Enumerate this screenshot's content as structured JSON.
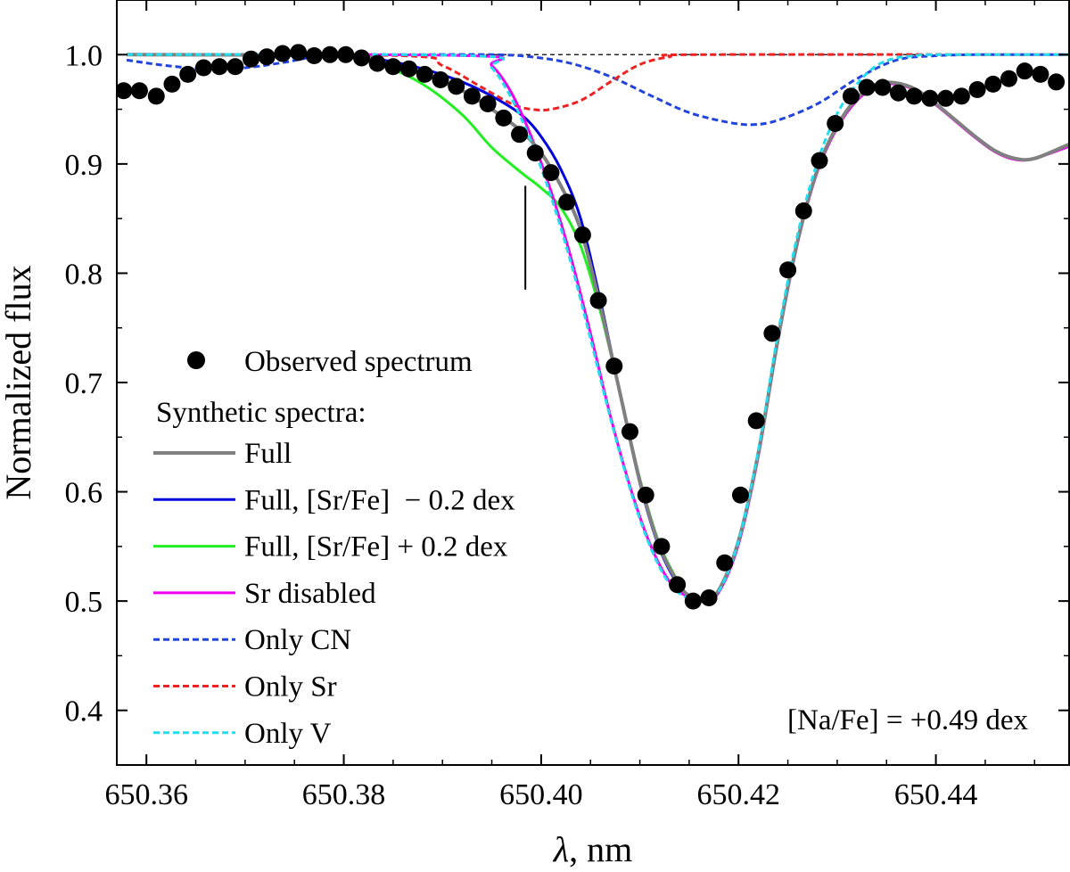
{
  "chart_data": {
    "type": "line",
    "title": "",
    "xlabel": "λ, nm",
    "xlabel_symbol": "λ",
    "xlabel_unit": ", nm",
    "ylabel": "Normalized flux",
    "xlim": [
      650.357,
      650.4535
    ],
    "ylim": [
      0.35,
      1.05
    ],
    "xticks": [
      650.36,
      650.38,
      650.4,
      650.42,
      650.44
    ],
    "xtick_labels": [
      "650.36",
      "650.38",
      "650.40",
      "650.42",
      "650.44"
    ],
    "yticks": [
      0.4,
      0.5,
      0.6,
      0.7,
      0.8,
      0.9,
      1.0
    ],
    "ytick_labels": [
      "0.4",
      "0.5",
      "0.6",
      "0.7",
      "0.8",
      "0.9",
      "1.0"
    ],
    "grid": false,
    "continuum_level": 1.0,
    "observed": {
      "name": "Observed spectrum",
      "color": "#000000",
      "points": [
        [
          650.3577,
          0.967
        ],
        [
          650.3593,
          0.967
        ],
        [
          650.361,
          0.962
        ],
        [
          650.3626,
          0.973
        ],
        [
          650.3642,
          0.982
        ],
        [
          650.3658,
          0.988
        ],
        [
          650.3674,
          0.989
        ],
        [
          650.369,
          0.989
        ],
        [
          650.3706,
          0.996
        ],
        [
          650.3722,
          0.998
        ],
        [
          650.3738,
          1.001
        ],
        [
          650.3754,
          1.002
        ],
        [
          650.377,
          0.999
        ],
        [
          650.3786,
          1.0
        ],
        [
          650.3802,
          1.0
        ],
        [
          650.3818,
          0.997
        ],
        [
          650.3834,
          0.992
        ],
        [
          650.385,
          0.989
        ],
        [
          650.3866,
          0.987
        ],
        [
          650.3882,
          0.982
        ],
        [
          650.3898,
          0.977
        ],
        [
          650.3914,
          0.971
        ],
        [
          650.393,
          0.962
        ],
        [
          650.3946,
          0.955
        ],
        [
          650.3962,
          0.942
        ],
        [
          650.3978,
          0.927
        ],
        [
          650.3994,
          0.91
        ],
        [
          650.401,
          0.892
        ],
        [
          650.4026,
          0.865
        ],
        [
          650.4042,
          0.835
        ],
        [
          650.4058,
          0.775
        ],
        [
          650.4074,
          0.715
        ],
        [
          650.409,
          0.655
        ],
        [
          650.4106,
          0.597
        ],
        [
          650.4122,
          0.55
        ],
        [
          650.4138,
          0.515
        ],
        [
          650.4154,
          0.5
        ],
        [
          650.417,
          0.503
        ],
        [
          650.4186,
          0.535
        ],
        [
          650.4202,
          0.597
        ],
        [
          650.4218,
          0.665
        ],
        [
          650.4234,
          0.745
        ],
        [
          650.425,
          0.803
        ],
        [
          650.4266,
          0.857
        ],
        [
          650.4282,
          0.903
        ],
        [
          650.4298,
          0.937
        ],
        [
          650.4314,
          0.962
        ],
        [
          650.433,
          0.97
        ],
        [
          650.4346,
          0.97
        ],
        [
          650.4362,
          0.965
        ],
        [
          650.4378,
          0.962
        ],
        [
          650.4394,
          0.96
        ],
        [
          650.441,
          0.96
        ],
        [
          650.4426,
          0.962
        ],
        [
          650.4442,
          0.968
        ],
        [
          650.4458,
          0.973
        ],
        [
          650.4474,
          0.978
        ],
        [
          650.449,
          0.985
        ],
        [
          650.4506,
          0.982
        ],
        [
          650.4522,
          0.975
        ]
      ]
    },
    "series": [
      {
        "name": "Full",
        "color": "#808080",
        "style": "solid",
        "width": 4,
        "x": [
          650.358,
          650.38,
          650.384,
          650.388,
          650.392,
          650.395,
          650.398,
          650.4,
          650.402,
          650.404,
          650.406,
          650.408,
          650.41,
          650.412,
          650.414,
          650.415,
          650.4165,
          650.418,
          650.42,
          650.422,
          650.424,
          650.426,
          650.428,
          650.43,
          650.432,
          650.434,
          650.436,
          650.438,
          650.44,
          650.442,
          650.444,
          650.446,
          650.448,
          650.45,
          650.4535
        ],
        "y": [
          1.0,
          0.999,
          0.993,
          0.982,
          0.967,
          0.95,
          0.93,
          0.91,
          0.88,
          0.84,
          0.77,
          0.69,
          0.61,
          0.55,
          0.515,
          0.505,
          0.5,
          0.51,
          0.555,
          0.635,
          0.74,
          0.83,
          0.895,
          0.935,
          0.96,
          0.973,
          0.974,
          0.968,
          0.955,
          0.94,
          0.925,
          0.912,
          0.905,
          0.905,
          0.918
        ]
      },
      {
        "name": "Full, [Sr/Fe]  − 0.2 dex",
        "color": "#0000dd",
        "style": "solid",
        "width": 3,
        "x": [
          650.358,
          650.38,
          650.384,
          650.388,
          650.392,
          650.395,
          650.398,
          650.4,
          650.402,
          650.404,
          650.406,
          650.408,
          650.41,
          650.412,
          650.414,
          650.415,
          650.4165,
          650.418,
          650.42,
          650.422,
          650.424,
          650.426,
          650.428,
          650.43,
          650.432,
          650.434
        ],
        "y": [
          1.0,
          0.999,
          0.995,
          0.987,
          0.975,
          0.962,
          0.945,
          0.925,
          0.895,
          0.85,
          0.775,
          0.69,
          0.608,
          0.548,
          0.513,
          0.504,
          0.5,
          0.51,
          0.555,
          0.635,
          0.74,
          0.83,
          0.895,
          0.935,
          0.96,
          0.973
        ]
      },
      {
        "name": "Full, [Sr/Fe] + 0.2 dex",
        "color": "#22ee22",
        "style": "solid",
        "width": 3,
        "x": [
          650.358,
          650.38,
          650.384,
          650.388,
          650.392,
          650.395,
          650.398,
          650.4,
          650.402,
          650.404,
          650.406,
          650.408,
          650.41,
          650.412,
          650.414,
          650.415,
          650.4165,
          650.418,
          650.42,
          650.422,
          650.424,
          650.426,
          650.428,
          650.43,
          650.432,
          650.434
        ],
        "y": [
          1.0,
          0.999,
          0.99,
          0.973,
          0.945,
          0.915,
          0.892,
          0.878,
          0.86,
          0.825,
          0.765,
          0.69,
          0.612,
          0.552,
          0.516,
          0.505,
          0.5,
          0.51,
          0.555,
          0.635,
          0.74,
          0.83,
          0.895,
          0.935,
          0.96,
          0.973
        ]
      },
      {
        "name": "Sr disabled",
        "color": "#ee00ee",
        "style": "solid",
        "width": 3,
        "x": [
          650.358,
          650.393,
          650.395,
          650.397,
          650.399,
          650.401,
          650.403,
          650.405,
          650.407,
          650.409,
          650.411,
          650.413,
          650.415,
          650.4165,
          650.418,
          650.42,
          650.422,
          650.424,
          650.426,
          650.428,
          650.43,
          650.432,
          650.434,
          650.436,
          650.438,
          650.44,
          650.442,
          650.444,
          650.446,
          650.448,
          650.45,
          650.4535
        ],
        "y": [
          1.0,
          0.999,
          0.99,
          0.965,
          0.925,
          0.875,
          0.815,
          0.745,
          0.67,
          0.605,
          0.553,
          0.518,
          0.503,
          0.5,
          0.508,
          0.552,
          0.632,
          0.738,
          0.828,
          0.893,
          0.933,
          0.958,
          0.971,
          0.973,
          0.967,
          0.954,
          0.939,
          0.924,
          0.911,
          0.904,
          0.905,
          0.916
        ]
      },
      {
        "name": "Only CN",
        "color": "#2244dd",
        "style": "dashed",
        "width": 3,
        "x": [
          650.358,
          650.362,
          650.366,
          650.37,
          650.374,
          650.377,
          650.38,
          650.386,
          650.395,
          650.399,
          650.403,
          650.407,
          650.411,
          650.415,
          650.419,
          650.4215,
          650.424,
          650.428,
          650.432,
          650.436,
          650.44,
          650.444,
          650.448,
          650.4535
        ],
        "y": [
          0.995,
          0.99,
          0.987,
          0.988,
          0.993,
          0.998,
          1.0,
          1.0,
          1.0,
          0.998,
          0.992,
          0.98,
          0.963,
          0.947,
          0.938,
          0.936,
          0.94,
          0.955,
          0.978,
          0.995,
          0.999,
          1.0,
          1.0,
          1.0
        ]
      },
      {
        "name": "Only Sr",
        "color": "#ee2222",
        "style": "dashed",
        "width": 3,
        "x": [
          650.358,
          650.386,
          650.39,
          650.394,
          650.397,
          650.399,
          650.401,
          650.404,
          650.407,
          650.41,
          650.413,
          650.416,
          650.4535
        ],
        "y": [
          1.0,
          0.999,
          0.99,
          0.97,
          0.955,
          0.95,
          0.95,
          0.958,
          0.975,
          0.991,
          0.998,
          1.0,
          1.0
        ]
      },
      {
        "name": "Only V",
        "color": "#22ddee",
        "style": "dashed",
        "width": 3,
        "x": [
          650.358,
          650.393,
          650.395,
          650.397,
          650.399,
          650.401,
          650.403,
          650.405,
          650.407,
          650.409,
          650.411,
          650.413,
          650.415,
          650.4165,
          650.418,
          650.42,
          650.422,
          650.424,
          650.426,
          650.428,
          650.43,
          650.432,
          650.434,
          650.436,
          650.438,
          650.44,
          650.4535
        ],
        "y": [
          1.0,
          0.999,
          0.988,
          0.96,
          0.92,
          0.87,
          0.81,
          0.74,
          0.668,
          0.603,
          0.551,
          0.516,
          0.502,
          0.5,
          0.509,
          0.555,
          0.638,
          0.745,
          0.836,
          0.902,
          0.946,
          0.973,
          0.99,
          0.997,
          0.999,
          1.0,
          1.0
        ]
      }
    ],
    "marker_line": {
      "x": 650.3984,
      "y_range": [
        0.785,
        0.88
      ]
    },
    "legend": {
      "placement": "bottom-left",
      "observed_label": "Observed spectrum",
      "synthetic_header": "Synthetic spectra:"
    },
    "annotation": "[Na/Fe] = +0.49 dex"
  }
}
